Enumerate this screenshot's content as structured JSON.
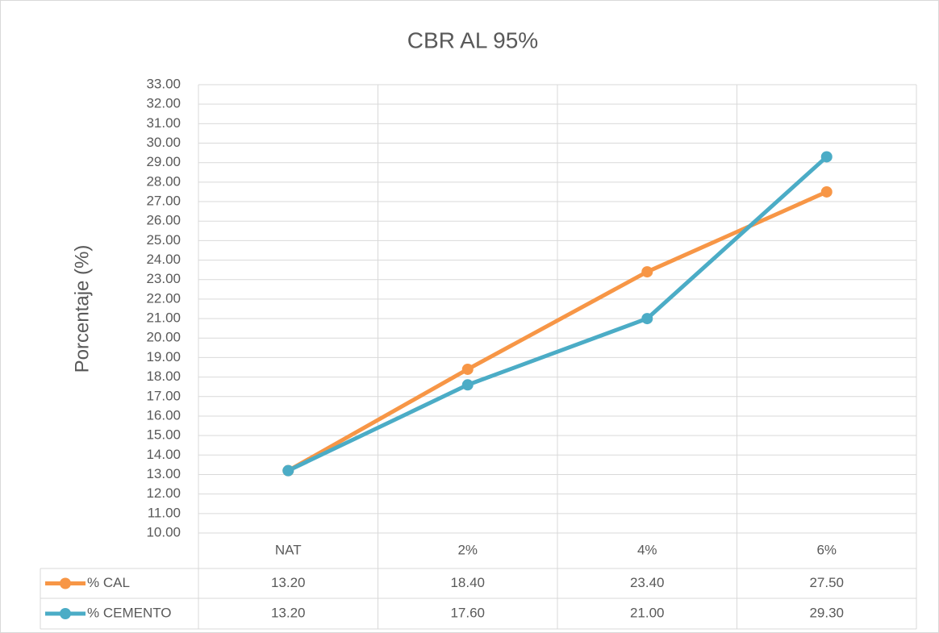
{
  "chart_data": {
    "type": "line",
    "title": "CBR AL 95%",
    "y_label": "Porcentaje (%)",
    "categories": [
      "NAT",
      "2%",
      "4%",
      "6%"
    ],
    "series": [
      {
        "name": "% CAL",
        "color": "#f79646",
        "values": [
          13.2,
          18.4,
          23.4,
          27.5
        ],
        "value_labels": [
          "13.20",
          "18.40",
          "23.40",
          "27.50"
        ]
      },
      {
        "name": "% CEMENTO",
        "color": "#4bacc6",
        "values": [
          13.2,
          17.6,
          21.0,
          29.3
        ],
        "value_labels": [
          "13.20",
          "17.60",
          "21.00",
          "29.30"
        ]
      }
    ],
    "ylim": [
      10,
      33
    ],
    "yticks": [
      {
        "value": 10,
        "label": "10.00"
      },
      {
        "value": 11,
        "label": "11.00"
      },
      {
        "value": 12,
        "label": "12.00"
      },
      {
        "value": 13,
        "label": "13.00"
      },
      {
        "value": 14,
        "label": "14.00"
      },
      {
        "value": 15,
        "label": "15.00"
      },
      {
        "value": 16,
        "label": "16.00"
      },
      {
        "value": 17,
        "label": "17.00"
      },
      {
        "value": 18,
        "label": "18.00"
      },
      {
        "value": 19,
        "label": "19.00"
      },
      {
        "value": 20,
        "label": "20.00"
      },
      {
        "value": 21,
        "label": "21.00"
      },
      {
        "value": 22,
        "label": "22.00"
      },
      {
        "value": 23,
        "label": "23.00"
      },
      {
        "value": 24,
        "label": "24.00"
      },
      {
        "value": 25,
        "label": "25.00"
      },
      {
        "value": 26,
        "label": "26.00"
      },
      {
        "value": 27,
        "label": "27.00"
      },
      {
        "value": 28,
        "label": "28.00"
      },
      {
        "value": 29,
        "label": "29.00"
      },
      {
        "value": 30,
        "label": "30.00"
      },
      {
        "value": 31,
        "label": "31.00"
      },
      {
        "value": 32,
        "label": "32.00"
      },
      {
        "value": 33,
        "label": "33.00"
      }
    ],
    "grid": true,
    "data_table": true
  }
}
